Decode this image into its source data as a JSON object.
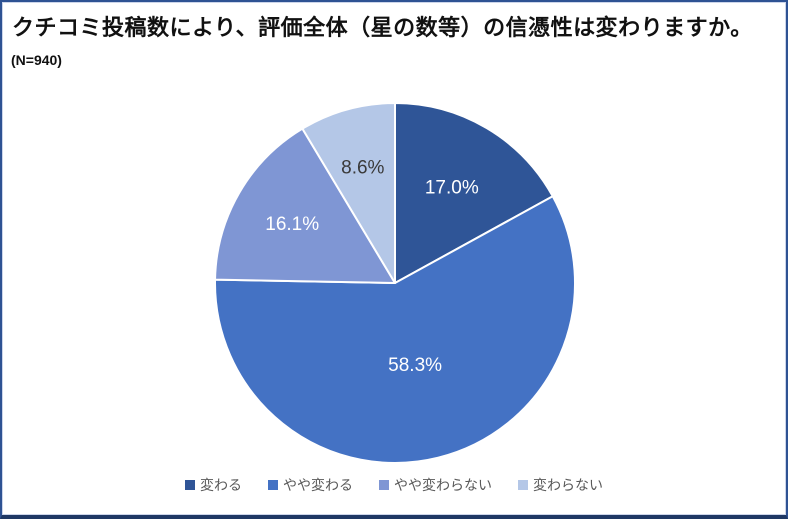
{
  "chart_data": {
    "type": "pie",
    "title": "クチコミ投稿数により、評価全体（星の数等）の信憑性は変わりますか。",
    "subtitle": "(N=940)",
    "categories": [
      "変わる",
      "やや変わる",
      "やや変わらない",
      "変わらない"
    ],
    "values": [
      17.0,
      58.3,
      16.1,
      8.6
    ],
    "labels": [
      "17.0%",
      "58.3%",
      "16.1%",
      "8.6%"
    ],
    "colors": [
      "#2f5597",
      "#4472c4",
      "#7f96d4",
      "#b4c7e7"
    ],
    "label_colors": [
      "#ffffff",
      "#ffffff",
      "#ffffff",
      "#3a3a3a"
    ],
    "start_angle_deg": 0,
    "direction": "clockwise",
    "slice_border_color": "#ffffff",
    "legend_position": "bottom",
    "legend_text_color": "#595959",
    "frame_border_color": "#2e5293",
    "frame_bottom_border_color": "#1f3864"
  }
}
